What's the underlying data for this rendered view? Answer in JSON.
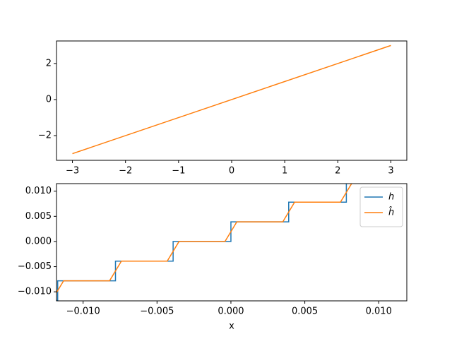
{
  "chart_data": [
    {
      "type": "line",
      "xlim": [
        -3.3,
        3.3
      ],
      "ylim": [
        -3.37,
        3.25
      ],
      "xticks": [
        {
          "value": -3,
          "label": "−3"
        },
        {
          "value": -2,
          "label": "−2"
        },
        {
          "value": -1,
          "label": "−1"
        },
        0,
        1,
        2,
        3
      ],
      "yticks": [
        {
          "value": -2,
          "label": "−2"
        },
        0,
        2
      ],
      "series": [
        {
          "color": "#ff7f0e",
          "x": [
            -3,
            3
          ],
          "values": [
            -3,
            3
          ]
        }
      ]
    },
    {
      "type": "line",
      "xlabel": "x",
      "xlim": [
        -0.0118,
        0.0119
      ],
      "ylim": [
        -0.0118,
        0.0115
      ],
      "xticks": [
        {
          "value": -0.01,
          "label": "−0.010"
        },
        {
          "value": -0.005,
          "label": "−0.005"
        },
        {
          "value": 0,
          "label": "0.000"
        },
        {
          "value": 0.005,
          "label": "0.005"
        },
        {
          "value": 0.01,
          "label": "0.010"
        }
      ],
      "yticks": [
        {
          "value": -0.01,
          "label": "−0.010"
        },
        {
          "value": -0.005,
          "label": "−0.005"
        },
        {
          "value": 0,
          "label": "0.000"
        },
        {
          "value": 0.005,
          "label": "0.005"
        },
        {
          "value": 0.01,
          "label": "0.010"
        }
      ],
      "legend": "upper right",
      "series": [
        {
          "name": "h",
          "color": "#1f77b4",
          "x": [
            -0.0118,
            -0.01172,
            -0.01172,
            -0.00781,
            -0.00781,
            -0.00391,
            -0.00391,
            0,
            0,
            0.00391,
            0.00391,
            0.00781,
            0.00781,
            0.0086
          ],
          "values": [
            -0.01172,
            -0.01172,
            -0.00781,
            -0.00781,
            -0.00391,
            -0.00391,
            0,
            0,
            0.00391,
            0.00391,
            0.00781,
            0.00781,
            0.01172,
            0.01172
          ]
        },
        {
          "name": "ĥ",
          "color": "#ff7f0e",
          "x": [
            -0.0118,
            -0.01132,
            -0.00821,
            -0.00741,
            -0.00431,
            -0.00351,
            -0.0004,
            0.0004,
            0.00351,
            0.00431,
            0.00741,
            0.00821
          ],
          "values": [
            -0.01016,
            -0.00781,
            -0.00781,
            -0.00391,
            -0.00391,
            0,
            0,
            0.00391,
            0.00391,
            0.00781,
            0.00781,
            0.01172
          ]
        }
      ]
    }
  ]
}
